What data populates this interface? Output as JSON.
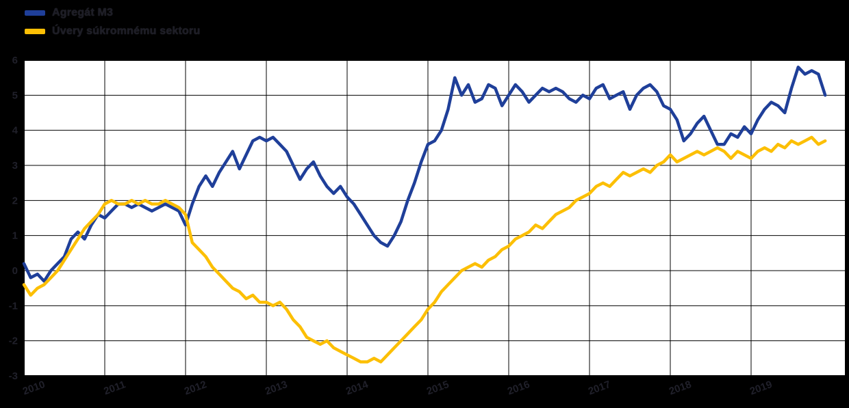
{
  "legend": {
    "items": [
      {
        "label": "Agregát M3",
        "color": "#1f3f99"
      },
      {
        "label": "Úvery súkromnému sektoru",
        "color": "#fcbf05"
      }
    ]
  },
  "chart_data": {
    "type": "line",
    "title": "",
    "xlabel": "",
    "ylabel": "",
    "x_unit": "monthly",
    "x_start": "2010-01",
    "x_tick_labels": [
      "2010",
      "2011",
      "2012",
      "2013",
      "2014",
      "2015",
      "2016",
      "2017",
      "2018",
      "2019"
    ],
    "y_ticks": [
      6,
      5,
      4,
      3,
      2,
      1,
      0,
      -1,
      -2,
      -3
    ],
    "ylim": [
      -3,
      6
    ],
    "grid": true,
    "legend_position": "top-left",
    "plot_background": "#ffffff",
    "page_background": "#000000",
    "grid_color": "#000000",
    "border_color": "#000000",
    "series": [
      {
        "name": "Agregát M3",
        "color": "#1f3f99",
        "values": [
          0.2,
          -0.2,
          -0.1,
          -0.3,
          0.0,
          0.2,
          0.4,
          0.9,
          1.1,
          0.9,
          1.3,
          1.6,
          1.5,
          1.7,
          1.9,
          1.9,
          1.8,
          1.9,
          1.8,
          1.7,
          1.8,
          1.9,
          1.8,
          1.7,
          1.3,
          1.9,
          2.4,
          2.7,
          2.4,
          2.8,
          3.1,
          3.4,
          2.9,
          3.3,
          3.7,
          3.8,
          3.7,
          3.8,
          3.6,
          3.4,
          3.0,
          2.6,
          2.9,
          3.1,
          2.7,
          2.4,
          2.2,
          2.4,
          2.1,
          1.9,
          1.6,
          1.3,
          1.0,
          0.8,
          0.7,
          1.0,
          1.4,
          2.0,
          2.5,
          3.1,
          3.6,
          3.7,
          4.0,
          4.6,
          5.5,
          5.0,
          5.3,
          4.8,
          4.9,
          5.3,
          5.2,
          4.7,
          5.0,
          5.3,
          5.1,
          4.8,
          5.0,
          5.2,
          5.1,
          5.2,
          5.1,
          4.9,
          4.8,
          5.0,
          4.9,
          5.2,
          5.3,
          4.9,
          5.0,
          5.1,
          4.6,
          5.0,
          5.2,
          5.3,
          5.1,
          4.7,
          4.6,
          4.3,
          3.7,
          3.9,
          4.2,
          4.4,
          4.0,
          3.6,
          3.6,
          3.9,
          3.8,
          4.1,
          3.9,
          4.3,
          4.6,
          4.8,
          4.7,
          4.5,
          5.2,
          5.8,
          5.6,
          5.7,
          5.6,
          5.0
        ]
      },
      {
        "name": "Úvery súkromnému sektoru",
        "color": "#fcbf05",
        "values": [
          -0.4,
          -0.7,
          -0.5,
          -0.4,
          -0.2,
          0.0,
          0.3,
          0.6,
          0.9,
          1.2,
          1.4,
          1.6,
          1.9,
          2.0,
          1.9,
          1.9,
          2.0,
          1.9,
          2.0,
          1.9,
          1.9,
          2.0,
          1.9,
          1.8,
          1.6,
          0.8,
          0.6,
          0.4,
          0.1,
          -0.1,
          -0.3,
          -0.5,
          -0.6,
          -0.8,
          -0.7,
          -0.9,
          -0.9,
          -1.0,
          -0.9,
          -1.1,
          -1.4,
          -1.6,
          -1.9,
          -2.0,
          -2.1,
          -2.0,
          -2.2,
          -2.3,
          -2.4,
          -2.5,
          -2.6,
          -2.6,
          -2.5,
          -2.6,
          -2.4,
          -2.2,
          -2.0,
          -1.8,
          -1.6,
          -1.4,
          -1.1,
          -0.9,
          -0.6,
          -0.4,
          -0.2,
          0.0,
          0.1,
          0.2,
          0.1,
          0.3,
          0.4,
          0.6,
          0.7,
          0.9,
          1.0,
          1.1,
          1.3,
          1.2,
          1.4,
          1.6,
          1.7,
          1.8,
          2.0,
          2.1,
          2.2,
          2.4,
          2.5,
          2.4,
          2.6,
          2.8,
          2.7,
          2.8,
          2.9,
          2.8,
          3.0,
          3.1,
          3.3,
          3.1,
          3.2,
          3.3,
          3.4,
          3.3,
          3.4,
          3.5,
          3.4,
          3.2,
          3.4,
          3.3,
          3.2,
          3.4,
          3.5,
          3.4,
          3.6,
          3.5,
          3.7,
          3.6,
          3.7,
          3.8,
          3.6,
          3.7
        ]
      }
    ]
  }
}
